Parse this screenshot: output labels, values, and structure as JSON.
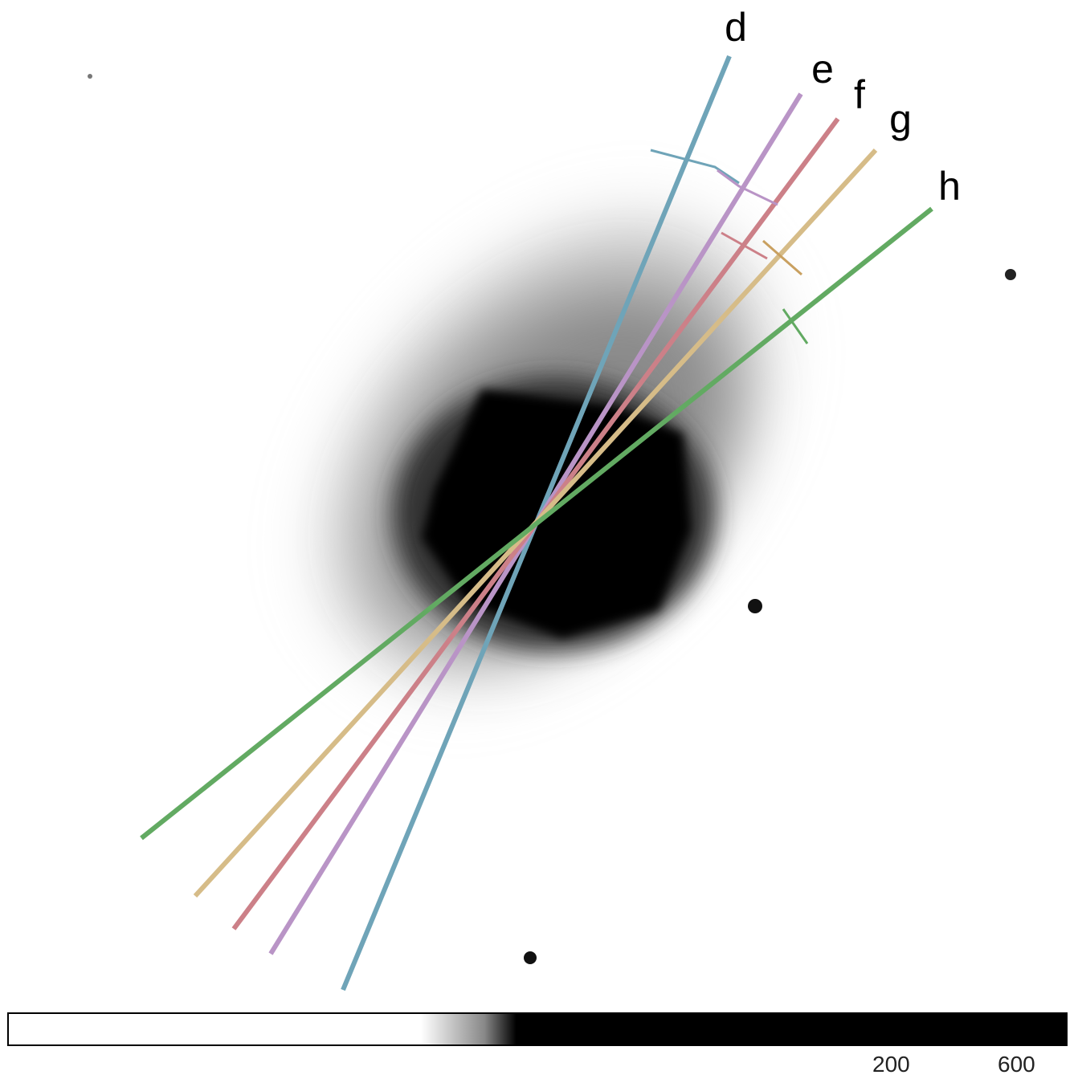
{
  "slit_labels": [
    "d",
    "e",
    "f",
    "g",
    "h"
  ],
  "colorbar": {
    "tick_labels": [
      "200",
      "600"
    ]
  }
}
